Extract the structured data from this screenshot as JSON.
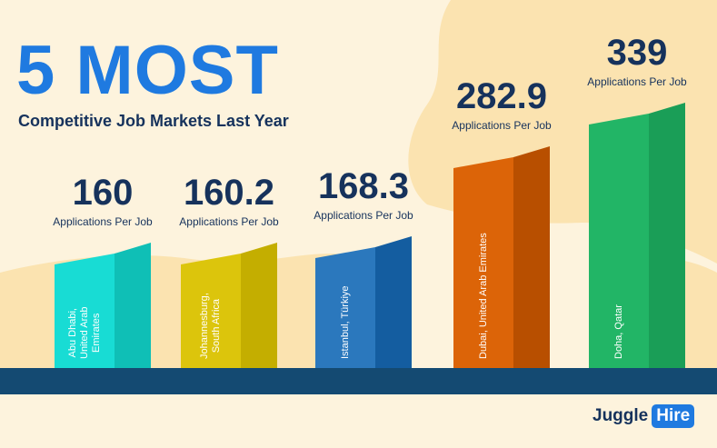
{
  "header": {
    "title": "5 MOST",
    "subtitle": "Competitive Job Markets Last Year"
  },
  "brand": {
    "word1": "Juggle",
    "word2": "Hire"
  },
  "colors": {
    "background": "#fdf3dd",
    "blob": "#fbe3b0",
    "floor": "#144a72",
    "title": "#1f7ae0",
    "text": "#16325c"
  },
  "chart_data": {
    "type": "bar",
    "categories": [
      "Abu Dhabi, United Arab Emirates",
      "Johannesburg, South Africa",
      "Istanbul, Türkiye",
      "Dubai, United Arab Emirates",
      "Doha, Qatar"
    ],
    "series": [
      {
        "values": [
          160,
          160.2,
          168.3,
          282.9,
          339
        ]
      }
    ],
    "value_labels": [
      "160",
      "160.2",
      "168.3",
      "282.9",
      "339"
    ],
    "unit_caption": "Applications Per Job",
    "city_lines": [
      [
        "Abu Dhabi,",
        "United Arab",
        "Emirates"
      ],
      [
        "Johannesburg,",
        "South Africa"
      ],
      [
        "Istanbul, Türkiye"
      ],
      [
        "Dubai, United Arab Emirates"
      ],
      [
        "Doha, Qatar"
      ]
    ],
    "colors": [
      {
        "front": "#18dcd4",
        "side": "#0fbfb6"
      },
      {
        "front": "#dcc50c",
        "side": "#c4ae00"
      },
      {
        "front": "#2b78bd",
        "side": "#145da0"
      },
      {
        "front": "#dc6408",
        "side": "#b84f00"
      },
      {
        "front": "#22b566",
        "side": "#1a9e57"
      }
    ]
  }
}
